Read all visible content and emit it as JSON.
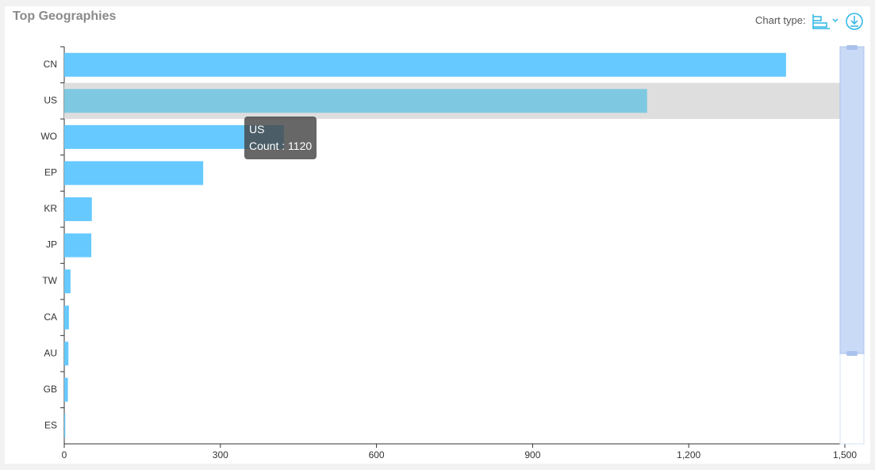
{
  "chart_type_label": "Chart type:",
  "chart_data": {
    "type": "hbar",
    "title": "Top Geographies",
    "categories": [
      "CN",
      "US",
      "WO",
      "EP",
      "KR",
      "JP",
      "TW",
      "CA",
      "AU",
      "GB",
      "ES"
    ],
    "series": [
      {
        "name": "Count",
        "color": "#66c9ff",
        "values": [
          1387,
          1120,
          422,
          267,
          53,
          52,
          12,
          9,
          8,
          7,
          2
        ]
      }
    ],
    "xlim": [
      0,
      1500
    ],
    "xticks": [
      0,
      300,
      600,
      900,
      {
        "value": 1200,
        "label": "1,200"
      },
      {
        "value": 1500,
        "label": "1,500"
      }
    ]
  }
}
